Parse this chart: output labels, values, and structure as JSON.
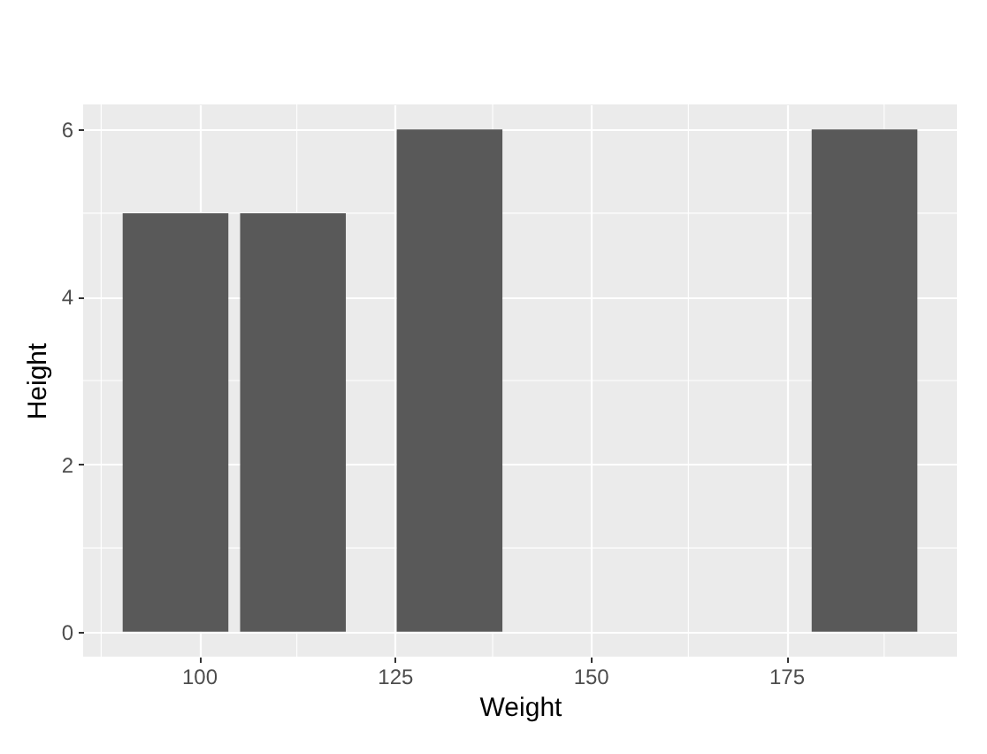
{
  "chart_data": {
    "type": "bar",
    "xlabel": "Weight",
    "ylabel": "Height",
    "x": [
      97,
      112,
      132,
      185
    ],
    "values": [
      5,
      5,
      6,
      6
    ],
    "color": "#595959",
    "xlim": [
      85.2,
      196.8
    ],
    "xticks": [
      100,
      125,
      150,
      175
    ],
    "ylim": [
      -0.3,
      6.3
    ],
    "yticks": [
      0,
      2,
      4,
      6
    ],
    "grid": true
  }
}
